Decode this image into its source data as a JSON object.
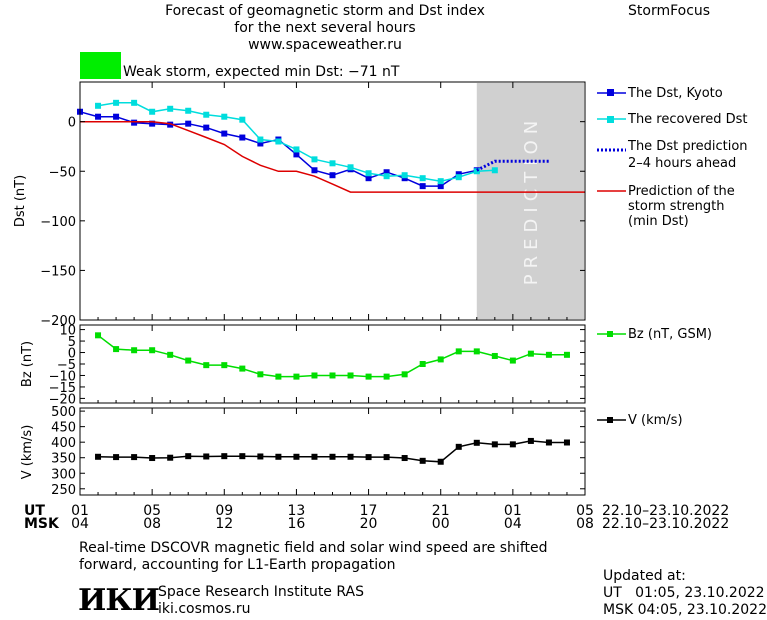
{
  "header": {
    "title_line1": "Forecast of geomagnetic storm and Dst index",
    "title_line2": "for the next several hours",
    "url": "www.spaceweather.ru",
    "brand": "StormFocus"
  },
  "status": {
    "color": "#00ee00",
    "text": "Weak storm, expected min Dst: −71 nT"
  },
  "prediction_band_label": "PREDICTION",
  "legend": {
    "dst_kyoto": "The Dst, Kyoto",
    "dst_recovered": "The recovered Dst",
    "dst_prediction_1": "The Dst prediction",
    "dst_prediction_2": "2–4 hours ahead",
    "strength_1": "Prediction of the",
    "strength_2": "storm strength",
    "strength_3": "(min Dst)",
    "bz": "Bz (nT, GSM)",
    "v": "V (km/s)"
  },
  "time_axis": {
    "ut_label": "UT",
    "msk_label": "MSK",
    "ut_ticks": [
      "01",
      "05",
      "09",
      "13",
      "17",
      "21",
      "01",
      "05"
    ],
    "msk_ticks": [
      "04",
      "08",
      "12",
      "16",
      "20",
      "00",
      "04",
      "08"
    ],
    "ut_range": "22.10–23.10.2022",
    "msk_range": "22.10–23.10.2022"
  },
  "footer": {
    "note_line1": "Real-time DSCOVR magnetic field and solar wind speed are shifted",
    "note_line2": "forward, accounting for L1-Earth propagation",
    "logo_text": "ИКИ",
    "org_name": "Space Research Institute RAS",
    "org_url": "iki.cosmos.ru",
    "updated_label": "Updated at:",
    "updated_ut": "UT   01:05, 23.10.2022",
    "updated_msk": "MSK 04:05, 23.10.2022"
  },
  "chart_data": [
    {
      "type": "line",
      "ylabel": "Dst (nT)",
      "ylim": [
        -200,
        40
      ],
      "yticks": [
        0,
        -50,
        -100,
        -150,
        -200
      ],
      "ytick_labels": [
        "0",
        "−50",
        "−100",
        "−150",
        "−200"
      ],
      "xlim": [
        0,
        28
      ],
      "prediction_x": [
        22,
        28
      ],
      "series": [
        {
          "name": "The Dst, Kyoto",
          "color": "#0000dd",
          "marker": "square",
          "x": [
            0,
            1,
            2,
            3,
            4,
            5,
            6,
            7,
            8,
            9,
            10,
            11,
            12,
            13,
            14,
            15,
            16,
            17,
            18,
            19,
            20,
            21,
            22
          ],
          "y": [
            10,
            5,
            5,
            -1,
            -2,
            -3,
            -2,
            -6,
            -12,
            -16,
            -22,
            -18,
            -33,
            -49,
            -54,
            -48,
            -57,
            -51,
            -57,
            -65,
            -65,
            -53,
            -49
          ]
        },
        {
          "name": "The recovered Dst",
          "color": "#00dddd",
          "marker": "square",
          "x": [
            1,
            2,
            3,
            4,
            5,
            6,
            7,
            8,
            9,
            10,
            11,
            12,
            13,
            14,
            15,
            16,
            17,
            18,
            19,
            20,
            21,
            22,
            23
          ],
          "y": [
            16,
            19,
            19,
            10,
            13,
            11,
            7,
            5,
            2,
            -18,
            -20,
            -28,
            -38,
            -42,
            -46,
            -52,
            -55,
            -54,
            -57,
            -60,
            -56,
            -50,
            -49
          ]
        },
        {
          "name": "The Dst prediction 2–4 hours ahead",
          "color": "#0000dd",
          "style": "dotted",
          "x": [
            22,
            23,
            24.5,
            26
          ],
          "y": [
            -49,
            -40,
            -40,
            -40
          ]
        },
        {
          "name": "Prediction of the storm strength (min Dst)",
          "color": "#dd0000",
          "x": [
            0,
            4,
            5,
            6,
            7,
            8,
            9,
            10,
            11,
            12,
            13,
            14,
            15,
            28
          ],
          "y": [
            0,
            0,
            -2,
            -9,
            -16,
            -23,
            -35,
            -44,
            -50,
            -50,
            -55,
            -63,
            -71,
            -71
          ]
        }
      ]
    },
    {
      "type": "line",
      "ylabel": "Bz (nT)",
      "ylim": [
        -22,
        12
      ],
      "yticks": [
        10,
        5,
        0,
        -5,
        -10,
        -15,
        -20
      ],
      "ytick_labels": [
        "10",
        "5",
        "0",
        "−5",
        "−10",
        "−15",
        "−20"
      ],
      "xlim": [
        0,
        28
      ],
      "series": [
        {
          "name": "Bz (nT, GSM)",
          "color": "#00dd00",
          "marker": "square",
          "x": [
            1,
            2,
            3,
            4,
            5,
            6,
            7,
            8,
            9,
            10,
            11,
            12,
            13,
            14,
            15,
            16,
            17,
            18,
            19,
            20,
            21,
            22,
            23,
            24,
            25,
            26,
            27
          ],
          "y": [
            7.5,
            1.5,
            1,
            1,
            -1,
            -3.5,
            -5.5,
            -5.5,
            -7,
            -9.5,
            -10.5,
            -10.5,
            -10,
            -10,
            -10,
            -10.5,
            -10.5,
            -9.5,
            -5,
            -3,
            0.5,
            0.5,
            -1.5,
            -3.5,
            -0.5,
            -1,
            -1
          ]
        }
      ]
    },
    {
      "type": "line",
      "ylabel": "V (km/s)",
      "ylim": [
        230,
        510
      ],
      "yticks": [
        500,
        450,
        400,
        350,
        300,
        250
      ],
      "ytick_labels": [
        "500",
        "450",
        "400",
        "350",
        "300",
        "250"
      ],
      "xlim": [
        0,
        28
      ],
      "series": [
        {
          "name": "V (km/s)",
          "color": "#000000",
          "marker": "square",
          "x": [
            1,
            2,
            3,
            4,
            5,
            6,
            7,
            8,
            9,
            10,
            11,
            12,
            13,
            14,
            15,
            16,
            17,
            18,
            19,
            20,
            21,
            22,
            23,
            24,
            25,
            26,
            27
          ],
          "y": [
            353,
            352,
            352,
            349,
            350,
            355,
            354,
            355,
            355,
            354,
            353,
            353,
            353,
            353,
            353,
            352,
            352,
            349,
            340,
            337,
            385,
            398,
            393,
            393,
            404,
            399,
            399
          ]
        }
      ]
    }
  ]
}
